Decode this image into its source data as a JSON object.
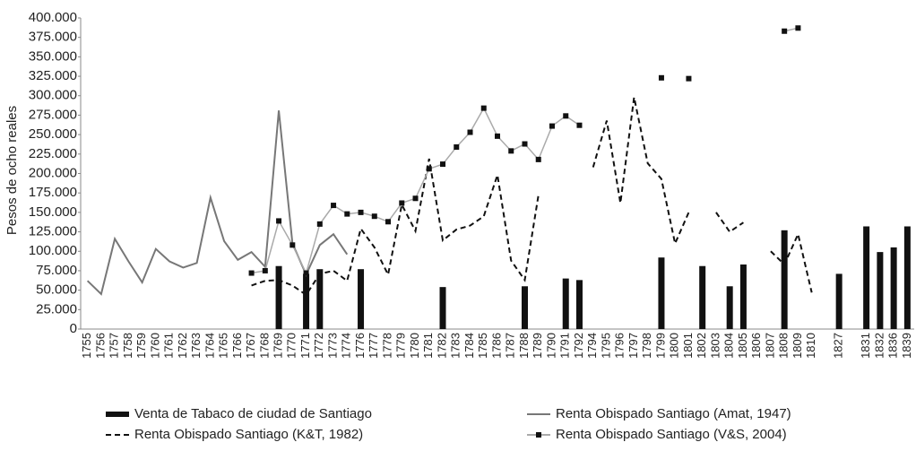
{
  "chart_data": {
    "type": "bar-line",
    "y_label": "Pesos de ocho reales",
    "categories": [
      "1755",
      "1756",
      "1757",
      "1758",
      "1759",
      "1760",
      "1761",
      "1762",
      "1763",
      "1764",
      "1765",
      "1766",
      "1767",
      "1768",
      "1769",
      "1770",
      "1771",
      "1772",
      "1773",
      "1774",
      "1776",
      "1777",
      "1778",
      "1779",
      "1780",
      "1781",
      "1782",
      "1783",
      "1784",
      "1785",
      "1786",
      "1787",
      "1788",
      "1789",
      "1790",
      "1791",
      "1792",
      "1794",
      "1795",
      "1796",
      "1797",
      "1798",
      "1799",
      "1800",
      "1801",
      "1802",
      "1803",
      "1804",
      "1805",
      "1806",
      "1807",
      "1808",
      "1809",
      "1810",
      null,
      "1827",
      null,
      "1831",
      "1832",
      "1836",
      "1839"
    ],
    "series": [
      {
        "name": "Venta de Tabaco de ciudad de Santiago",
        "kind": "bar",
        "color": "#111111",
        "values": [
          null,
          null,
          null,
          null,
          null,
          null,
          null,
          null,
          null,
          null,
          null,
          null,
          null,
          null,
          81000,
          null,
          71000,
          77000,
          null,
          null,
          77000,
          null,
          null,
          null,
          null,
          null,
          54000,
          null,
          null,
          null,
          null,
          null,
          55000,
          null,
          null,
          65000,
          63000,
          null,
          null,
          null,
          null,
          null,
          92000,
          null,
          null,
          81000,
          null,
          55000,
          83000,
          null,
          null,
          127000,
          null,
          null,
          null,
          71000,
          null,
          132000,
          99000,
          105000,
          132000
        ]
      },
      {
        "name": "Renta Obispado Santiago (Amat, 1947)",
        "kind": "line",
        "color": "#777777",
        "values": [
          62000,
          45000,
          116000,
          87000,
          60000,
          103000,
          87000,
          79000,
          85000,
          169000,
          113000,
          89000,
          99000,
          80000,
          281000,
          110000,
          70000,
          108000,
          122000,
          96000,
          null,
          null,
          null,
          null,
          null,
          null,
          null,
          null,
          null,
          null,
          null,
          null,
          null,
          null,
          null,
          null,
          null,
          null,
          null,
          null,
          null,
          null,
          null,
          null,
          null,
          null,
          null,
          null,
          null,
          null,
          null,
          null,
          null,
          null,
          null,
          null,
          null,
          null,
          null,
          null,
          null
        ]
      },
      {
        "name": "Renta Obispado Santiago (K&T, 1982)",
        "kind": "dashed",
        "color": "#111111",
        "values": [
          null,
          null,
          null,
          null,
          null,
          null,
          null,
          null,
          null,
          null,
          null,
          null,
          56000,
          62000,
          63000,
          56000,
          44000,
          71000,
          75000,
          62000,
          129000,
          105000,
          70000,
          160000,
          126000,
          219000,
          114000,
          128000,
          133000,
          145000,
          198000,
          88000,
          63000,
          172000,
          null,
          null,
          null,
          208000,
          268000,
          162000,
          298000,
          213000,
          193000,
          110000,
          150000,
          null,
          150000,
          125000,
          137000,
          null,
          100000,
          83000,
          122000,
          47000,
          null,
          null,
          null,
          null,
          null,
          null,
          null
        ]
      },
      {
        "name": "Renta Obispado Santiago (V&S, 2004)",
        "kind": "marker-line",
        "color": "#aaaaaa",
        "marker_color": "#111111",
        "values": [
          null,
          null,
          null,
          null,
          null,
          null,
          null,
          null,
          null,
          null,
          null,
          null,
          72000,
          75000,
          139000,
          108000,
          72000,
          135000,
          159000,
          148000,
          150000,
          145000,
          138000,
          162000,
          168000,
          206000,
          212000,
          234000,
          253000,
          284000,
          248000,
          229000,
          238000,
          218000,
          261000,
          274000,
          262000,
          null,
          null,
          null,
          null,
          null,
          323000,
          null,
          322000,
          null,
          null,
          null,
          null,
          null,
          null,
          383000,
          387000,
          null,
          null,
          null,
          null,
          null,
          null,
          null,
          null
        ]
      }
    ],
    "ylim": [
      0,
      400000
    ],
    "yticks": [
      {
        "value": 0,
        "label": "0"
      },
      {
        "value": 25000,
        "label": "25.000"
      },
      {
        "value": 50000,
        "label": "50.000"
      },
      {
        "value": 75000,
        "label": "75.000"
      },
      {
        "value": 100000,
        "label": "100.000"
      },
      {
        "value": 125000,
        "label": "125.000"
      },
      {
        "value": 150000,
        "label": "150.000"
      },
      {
        "value": 175000,
        "label": "175.000"
      },
      {
        "value": 200000,
        "label": "200.000"
      },
      {
        "value": 225000,
        "label": "225.000"
      },
      {
        "value": 250000,
        "label": "250.000"
      },
      {
        "value": 275000,
        "label": "275.000"
      },
      {
        "value": 300000,
        "label": "300.000"
      },
      {
        "value": 325000,
        "label": "325.000"
      },
      {
        "value": 350000,
        "label": "350.000"
      },
      {
        "value": 375000,
        "label": "375.000"
      },
      {
        "value": 400000,
        "label": "400.000"
      }
    ]
  }
}
